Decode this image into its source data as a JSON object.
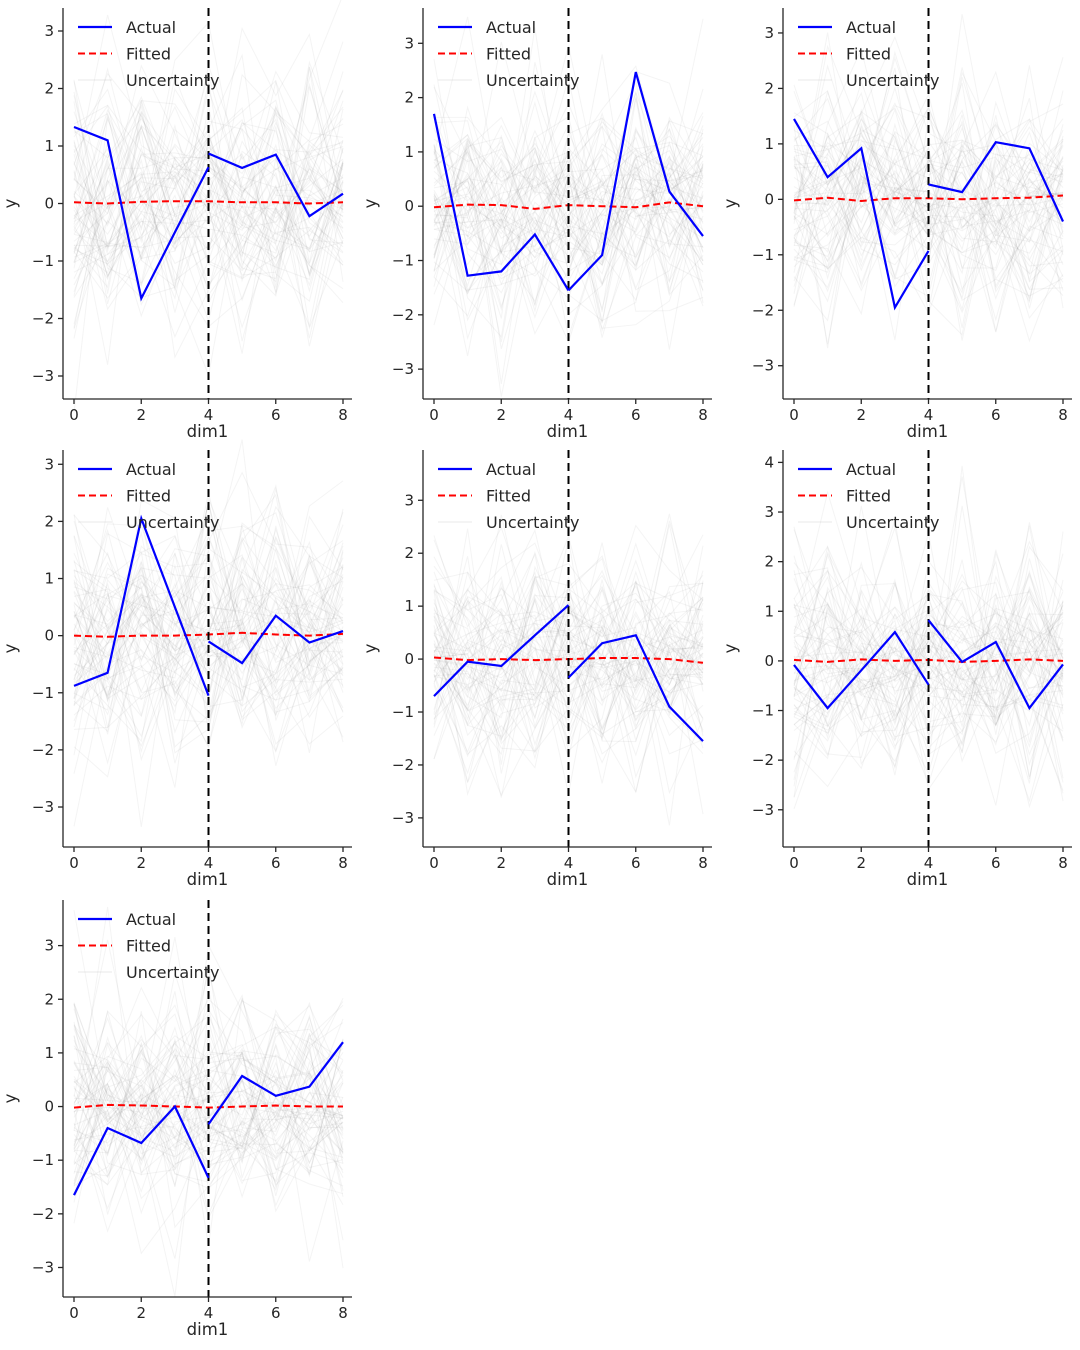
{
  "figure": {
    "background": "#ffffff",
    "text_color": "#262626",
    "spine_color": "#262626",
    "actual_color": "#0000ff",
    "fitted_color": "#ff0000",
    "uncertainty_color": "#8a8a8a",
    "vline_color": "#000000"
  },
  "legend": {
    "actual": "Actual",
    "fitted": "Fitted",
    "uncertainty": "Uncertainty"
  },
  "axis": {
    "xlabel": "dim1",
    "ylabel": "y",
    "xticks": [
      0,
      2,
      4,
      6,
      8
    ],
    "x_range": [
      0,
      8
    ]
  },
  "chart_data": [
    {
      "type": "line",
      "title": "",
      "xlabel": "dim1",
      "ylabel": "y",
      "row": 0,
      "col": 0,
      "xticks": [
        0,
        2,
        4,
        6,
        8
      ],
      "yticks": [
        -3,
        -2,
        -1,
        0,
        1,
        2,
        3
      ],
      "ylim": [
        -3.4,
        3.4
      ],
      "vline_x": 4,
      "legend": [
        "Actual",
        "Fitted",
        "Uncertainty"
      ],
      "series": [
        {
          "name": "Actual (context)",
          "x": [
            0,
            1,
            2,
            3,
            4
          ],
          "y": [
            1.33,
            1.1,
            -1.65,
            -0.5,
            0.63
          ]
        },
        {
          "name": "Actual (horizon)",
          "x": [
            4,
            5,
            6,
            7,
            8
          ],
          "y": [
            0.87,
            0.62,
            0.85,
            -0.22,
            0.17
          ]
        },
        {
          "name": "Fitted",
          "x": [
            0,
            1,
            2,
            3,
            4,
            5,
            6,
            7,
            8
          ],
          "y": [
            0.02,
            0.0,
            0.03,
            0.04,
            0.04,
            0.02,
            0.02,
            0.0,
            0.02
          ]
        }
      ],
      "uncertainty": {
        "n_lines": 70,
        "sigma": 1.05,
        "seed": 11
      }
    },
    {
      "type": "line",
      "title": "",
      "xlabel": "dim1",
      "ylabel": "y",
      "row": 0,
      "col": 1,
      "xticks": [
        0,
        2,
        4,
        6,
        8
      ],
      "yticks": [
        -3,
        -2,
        -1,
        0,
        1,
        2,
        3
      ],
      "ylim": [
        -3.55,
        3.65
      ],
      "vline_x": 4,
      "legend": [
        "Actual",
        "Fitted",
        "Uncertainty"
      ],
      "series": [
        {
          "name": "Actual (context)",
          "x": [
            0,
            1,
            2,
            3,
            4
          ],
          "y": [
            1.7,
            -1.28,
            -1.2,
            -0.52,
            -1.55
          ]
        },
        {
          "name": "Actual (horizon)",
          "x": [
            4,
            5,
            6,
            7,
            8
          ],
          "y": [
            -1.55,
            -0.9,
            2.47,
            0.27,
            -0.55
          ]
        },
        {
          "name": "Fitted",
          "x": [
            0,
            1,
            2,
            3,
            4,
            5,
            6,
            7,
            8
          ],
          "y": [
            -0.02,
            0.03,
            0.02,
            -0.05,
            0.02,
            0.0,
            -0.02,
            0.07,
            0.0
          ]
        }
      ],
      "uncertainty": {
        "n_lines": 70,
        "sigma": 1.05,
        "seed": 22
      }
    },
    {
      "type": "line",
      "title": "",
      "xlabel": "dim1",
      "ylabel": "y",
      "row": 0,
      "col": 2,
      "xticks": [
        0,
        2,
        4,
        6,
        8
      ],
      "yticks": [
        -3,
        -2,
        -1,
        0,
        1,
        2,
        3
      ],
      "ylim": [
        -3.6,
        3.45
      ],
      "vline_x": 4,
      "legend": [
        "Actual",
        "Fitted",
        "Uncertainty"
      ],
      "series": [
        {
          "name": "Actual (context)",
          "x": [
            0,
            1,
            2,
            3,
            4
          ],
          "y": [
            1.45,
            0.4,
            0.92,
            -1.95,
            -0.93
          ]
        },
        {
          "name": "Actual (horizon)",
          "x": [
            4,
            5,
            6,
            7,
            8
          ],
          "y": [
            0.27,
            0.13,
            1.03,
            0.92,
            -0.4
          ]
        },
        {
          "name": "Fitted",
          "x": [
            0,
            1,
            2,
            3,
            4,
            5,
            6,
            7,
            8
          ],
          "y": [
            -0.02,
            0.03,
            -0.03,
            0.02,
            0.02,
            0.0,
            0.02,
            0.03,
            0.07
          ]
        }
      ],
      "uncertainty": {
        "n_lines": 70,
        "sigma": 1.05,
        "seed": 33
      }
    },
    {
      "type": "line",
      "title": "",
      "xlabel": "dim1",
      "ylabel": "y",
      "row": 1,
      "col": 0,
      "xticks": [
        0,
        2,
        4,
        6,
        8
      ],
      "yticks": [
        -3,
        -2,
        -1,
        0,
        1,
        2,
        3
      ],
      "ylim": [
        -3.7,
        3.25
      ],
      "vline_x": 4,
      "legend": [
        "Actual",
        "Fitted",
        "Uncertainty"
      ],
      "series": [
        {
          "name": "Actual (context)",
          "x": [
            0,
            1,
            2,
            3,
            4
          ],
          "y": [
            -0.88,
            -0.65,
            2.05,
            0.5,
            -1.05
          ]
        },
        {
          "name": "Actual (horizon)",
          "x": [
            4,
            5,
            6,
            7,
            8
          ],
          "y": [
            -0.1,
            -0.48,
            0.35,
            -0.12,
            0.08
          ]
        },
        {
          "name": "Fitted",
          "x": [
            0,
            1,
            2,
            3,
            4,
            5,
            6,
            7,
            8
          ],
          "y": [
            0.0,
            -0.02,
            0.0,
            0.0,
            0.02,
            0.05,
            0.02,
            0.0,
            0.03
          ]
        }
      ],
      "uncertainty": {
        "n_lines": 70,
        "sigma": 1.05,
        "seed": 44
      }
    },
    {
      "type": "line",
      "title": "",
      "xlabel": "dim1",
      "ylabel": "y",
      "row": 1,
      "col": 1,
      "xticks": [
        0,
        2,
        4,
        6,
        8
      ],
      "yticks": [
        -3,
        -2,
        -1,
        0,
        1,
        2,
        3
      ],
      "ylim": [
        -3.55,
        3.95
      ],
      "vline_x": 4,
      "legend": [
        "Actual",
        "Fitted",
        "Uncertainty"
      ],
      "series": [
        {
          "name": "Actual (context)",
          "x": [
            0,
            1,
            2,
            3,
            4
          ],
          "y": [
            -0.7,
            -0.05,
            -0.13,
            0.45,
            1.02
          ]
        },
        {
          "name": "Actual (horizon)",
          "x": [
            4,
            5,
            6,
            7,
            8
          ],
          "y": [
            -0.35,
            0.3,
            0.45,
            -0.9,
            -1.55
          ]
        },
        {
          "name": "Fitted",
          "x": [
            0,
            1,
            2,
            3,
            4,
            5,
            6,
            7,
            8
          ],
          "y": [
            0.03,
            -0.02,
            0.0,
            -0.02,
            0.0,
            0.02,
            0.02,
            0.0,
            -0.07
          ]
        }
      ],
      "uncertainty": {
        "n_lines": 70,
        "sigma": 1.05,
        "seed": 55
      }
    },
    {
      "type": "line",
      "title": "",
      "xlabel": "dim1",
      "ylabel": "y",
      "row": 1,
      "col": 2,
      "xticks": [
        0,
        2,
        4,
        6,
        8
      ],
      "yticks": [
        -3,
        -2,
        -1,
        0,
        1,
        2,
        3,
        4
      ],
      "ylim": [
        -3.75,
        4.25
      ],
      "vline_x": 4,
      "legend": [
        "Actual",
        "Fitted",
        "Uncertainty"
      ],
      "series": [
        {
          "name": "Actual (context)",
          "x": [
            0,
            1,
            2,
            3,
            4
          ],
          "y": [
            -0.08,
            -0.95,
            -0.19,
            0.58,
            -0.48
          ]
        },
        {
          "name": "Actual (horizon)",
          "x": [
            4,
            5,
            6,
            7,
            8
          ],
          "y": [
            0.82,
            -0.02,
            0.38,
            -0.95,
            -0.07
          ]
        },
        {
          "name": "Fitted",
          "x": [
            0,
            1,
            2,
            3,
            4,
            5,
            6,
            7,
            8
          ],
          "y": [
            0.02,
            -0.02,
            0.03,
            0.0,
            0.02,
            -0.02,
            0.0,
            0.03,
            0.0
          ]
        }
      ],
      "uncertainty": {
        "n_lines": 70,
        "sigma": 1.08,
        "seed": 66
      }
    },
    {
      "type": "line",
      "title": "",
      "xlabel": "dim1",
      "ylabel": "y",
      "row": 2,
      "col": 0,
      "xticks": [
        0,
        2,
        4,
        6,
        8
      ],
      "yticks": [
        -3,
        -2,
        -1,
        0,
        1,
        2,
        3
      ],
      "ylim": [
        -3.55,
        3.85
      ],
      "vline_x": 4,
      "legend": [
        "Actual",
        "Fitted",
        "Uncertainty"
      ],
      "series": [
        {
          "name": "Actual (context)",
          "x": [
            0,
            1,
            2,
            3,
            4
          ],
          "y": [
            -1.65,
            -0.4,
            -0.68,
            0.0,
            -1.33
          ]
        },
        {
          "name": "Actual (horizon)",
          "x": [
            4,
            5,
            6,
            7,
            8
          ],
          "y": [
            -0.33,
            0.57,
            0.2,
            0.37,
            1.2
          ]
        },
        {
          "name": "Fitted",
          "x": [
            0,
            1,
            2,
            3,
            4,
            5,
            6,
            7,
            8
          ],
          "y": [
            -0.02,
            0.03,
            0.02,
            0.0,
            -0.02,
            0.0,
            0.02,
            0.0,
            0.0
          ]
        }
      ],
      "uncertainty": {
        "n_lines": 70,
        "sigma": 1.05,
        "seed": 77
      }
    }
  ]
}
